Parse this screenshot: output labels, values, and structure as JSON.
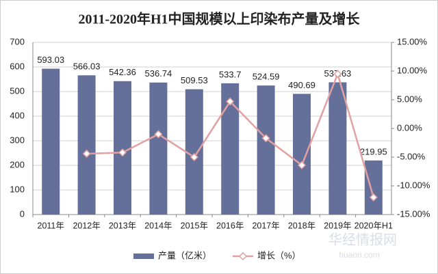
{
  "chart_data": {
    "type": "bar-line",
    "title": "2011-2020年H1中国规模以上印染布产量及增长",
    "categories": [
      "2011年",
      "2012年",
      "2013年",
      "2014年",
      "2015年",
      "2016年",
      "2017年",
      "2018年",
      "2019年",
      "2020年H1"
    ],
    "series": [
      {
        "name": "产量（亿米）",
        "type": "bar",
        "color": "#65709a",
        "values": [
          593.03,
          566.03,
          542.36,
          536.74,
          509.53,
          533.7,
          524.59,
          490.69,
          537.63,
          219.95
        ]
      },
      {
        "name": "增长（%）",
        "type": "line",
        "axis": "y2",
        "color": "#e2a0a0",
        "values": [
          null,
          -4.4,
          -4.2,
          -1.0,
          -5.0,
          4.7,
          -1.7,
          -6.4,
          9.5,
          -12.0
        ]
      }
    ],
    "ylim": [
      0,
      700
    ],
    "yticks": [
      0,
      100,
      200,
      300,
      400,
      500,
      600,
      700
    ],
    "y2lim": [
      -15,
      15
    ],
    "y2ticks": [
      {
        "value": -15,
        "label": "-15.00%"
      },
      {
        "value": -10,
        "label": "-10.00%"
      },
      {
        "value": -5,
        "label": "-5.00%"
      },
      {
        "value": 0,
        "label": "0.00%"
      },
      {
        "value": 5,
        "label": "5.00%"
      },
      {
        "value": 10,
        "label": "10.00%"
      },
      {
        "value": 15,
        "label": "15.00%"
      }
    ],
    "grid": true,
    "legend": "bottom",
    "watermark": {
      "name": "华经情报网",
      "url": "huaon.com"
    }
  }
}
